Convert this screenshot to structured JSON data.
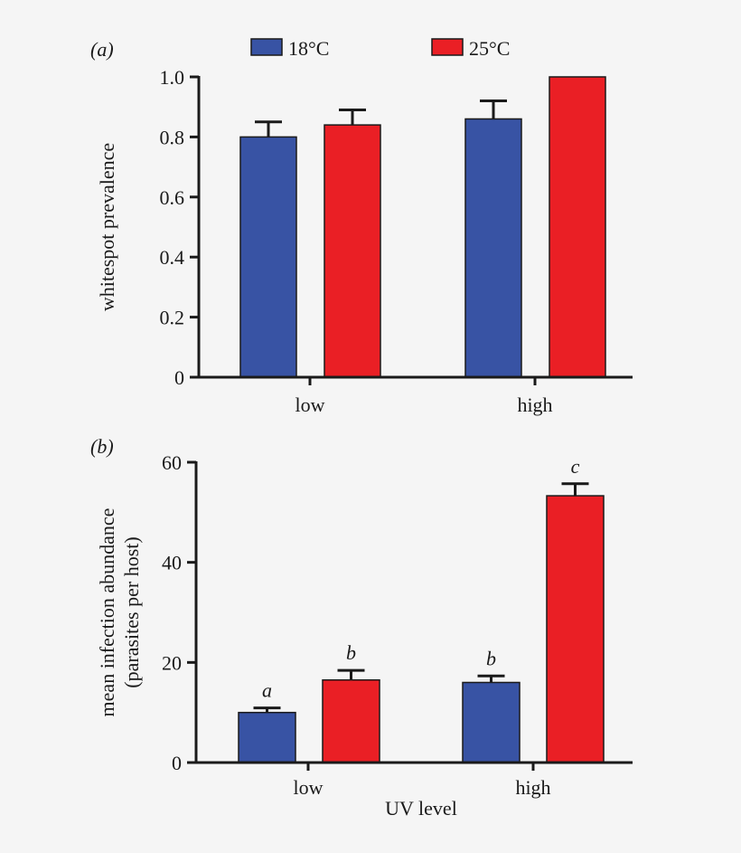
{
  "colors": {
    "blue": "#3853a4",
    "red": "#ea1f25",
    "axis": "#1a1a1a",
    "background": "#f5f5f5"
  },
  "legend": [
    {
      "label": "18°C",
      "color": "#3853a4"
    },
    {
      "label": "25°C",
      "color": "#ea1f25"
    }
  ],
  "chart_data": [
    {
      "type": "bar",
      "panel_label": "(a)",
      "categories": [
        "low",
        "high"
      ],
      "xlabel": "",
      "ylabel": "whitespot prevalence",
      "ylim": [
        0,
        1.0
      ],
      "yticks": [
        "0",
        "0.2",
        "0.4",
        "0.6",
        "0.8",
        "1.0"
      ],
      "series": [
        {
          "name": "18°C",
          "values": [
            0.8,
            0.86
          ],
          "error_top": [
            0.85,
            0.92
          ]
        },
        {
          "name": "25°C",
          "values": [
            0.84,
            1.0
          ],
          "error_top": [
            0.89,
            null
          ]
        }
      ],
      "annotations": []
    },
    {
      "type": "bar",
      "panel_label": "(b)",
      "categories": [
        "low",
        "high"
      ],
      "xlabel": "UV level",
      "ylabel": "mean infection abundance",
      "ylabel2": "(parasites per host)",
      "ylim": [
        0,
        60
      ],
      "yticks": [
        "0",
        "20",
        "40",
        "60"
      ],
      "series": [
        {
          "name": "18°C",
          "values": [
            10.0,
            16.0
          ],
          "error_top": [
            10.9,
            17.3
          ]
        },
        {
          "name": "25°C",
          "values": [
            16.5,
            53.3
          ],
          "error_top": [
            18.4,
            55.7
          ]
        }
      ],
      "annotations": [
        [
          "a",
          "b"
        ],
        [
          "b",
          "c"
        ]
      ]
    }
  ]
}
